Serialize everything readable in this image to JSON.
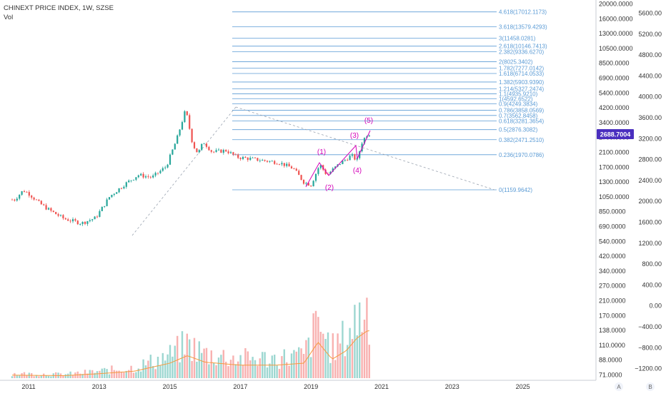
{
  "header": {
    "symbol": "CHINEXT PRICE INDEX, 1W, SZSE",
    "volume_label": "Vol"
  },
  "price_axis": {
    "ticks": [
      "20000.0000",
      "16000.0000",
      "13000.0000",
      "10500.0000",
      "8500.0000",
      "6900.0000",
      "5400.0000",
      "4200.0000",
      "3400.0000",
      "2700.0000",
      "2100.0000",
      "1700.0000",
      "1300.0000",
      "1050.0000",
      "850.0000",
      "690.0000",
      "540.0000",
      "420.0000",
      "340.0000",
      "270.0000",
      "210.0000",
      "170.0000",
      "138.0000",
      "110.0000",
      "88.0000",
      "71.0000"
    ],
    "last_price": "2688.7004",
    "last_price_color": "#4a2fbf"
  },
  "volume_axis": {
    "ticks": [
      "5600.00",
      "5200.00",
      "4800.00",
      "4400.00",
      "4000.00",
      "3600.00",
      "3200.00",
      "2800.00",
      "2400.00",
      "2000.00",
      "1600.00",
      "1200.00",
      "800.00",
      "400.00",
      "0.00",
      "−400.00",
      "−800.00",
      "−1200.00"
    ]
  },
  "time_axis": {
    "labels": [
      "2011",
      "2013",
      "2015",
      "2017",
      "2019",
      "2021",
      "2023",
      "2025"
    ]
  },
  "footer": {
    "scale_a": "A",
    "scale_b": "B"
  },
  "fib_levels": [
    "4.618(17012.1173)",
    "3.618(13579.4293)",
    "3(11458.0281)",
    "2.618(10146.7413)",
    "2.382(9336.6270)",
    "2(8025.3402)",
    "1.782(7277.0142)",
    "1.618(6714.0533)",
    "1.382(5903.9390)",
    "1.214(5327.2474)",
    "1.1(4935.9210)",
    "1(4592.6522)",
    "0.9(4249.3834)",
    "0.786(3858.0569)",
    "0.7(3562.8458)",
    "0.618(3281.3654)",
    "0.5(2876.3082)",
    "0.382(2471.2510)",
    "0.236(1970.0786)",
    "0(1159.9642)"
  ],
  "wave_labels": [
    "(1)",
    "(2)",
    "(3)",
    "(4)",
    "(5)"
  ],
  "colors": {
    "up": "#26a69a",
    "down": "#ef5350",
    "fib": "#5b9bd5",
    "wave": "#d400b8",
    "ma": "#f59a3c",
    "axis_text": "#333333"
  },
  "chart_data": {
    "type": "candlestick",
    "title": "CHINEXT PRICE INDEX, 1W, SZSE",
    "scale": "log",
    "price_series": {
      "name": "CHINEXT PRICE INDEX",
      "x": [
        2010.6,
        2010.85,
        2011.0,
        2011.3,
        2011.6,
        2012.0,
        2012.5,
        2012.9,
        2013.3,
        2013.7,
        2014.1,
        2014.5,
        2014.9,
        2015.2,
        2015.45,
        2015.65,
        2015.8,
        2015.95,
        2016.2,
        2016.6,
        2016.9,
        2017.3,
        2017.7,
        2018.1,
        2018.5,
        2018.8,
        2019.0,
        2019.25,
        2019.45,
        2019.65,
        2019.85,
        2020.15,
        2020.3,
        2020.45,
        2020.6
      ],
      "y": [
        1000,
        1150,
        1100,
        950,
        850,
        750,
        700,
        760,
        1050,
        1250,
        1450,
        1400,
        1650,
        2500,
        3900,
        2300,
        2000,
        2400,
        2050,
        2100,
        1900,
        1850,
        1800,
        1750,
        1600,
        1300,
        1250,
        1700,
        1450,
        1600,
        1750,
        1950,
        1800,
        2400,
        2700
      ]
    },
    "volume_series": {
      "name": "Vol",
      "note": "weekly volume bars with moving average"
    },
    "ylim": [
      71,
      20000
    ]
  }
}
